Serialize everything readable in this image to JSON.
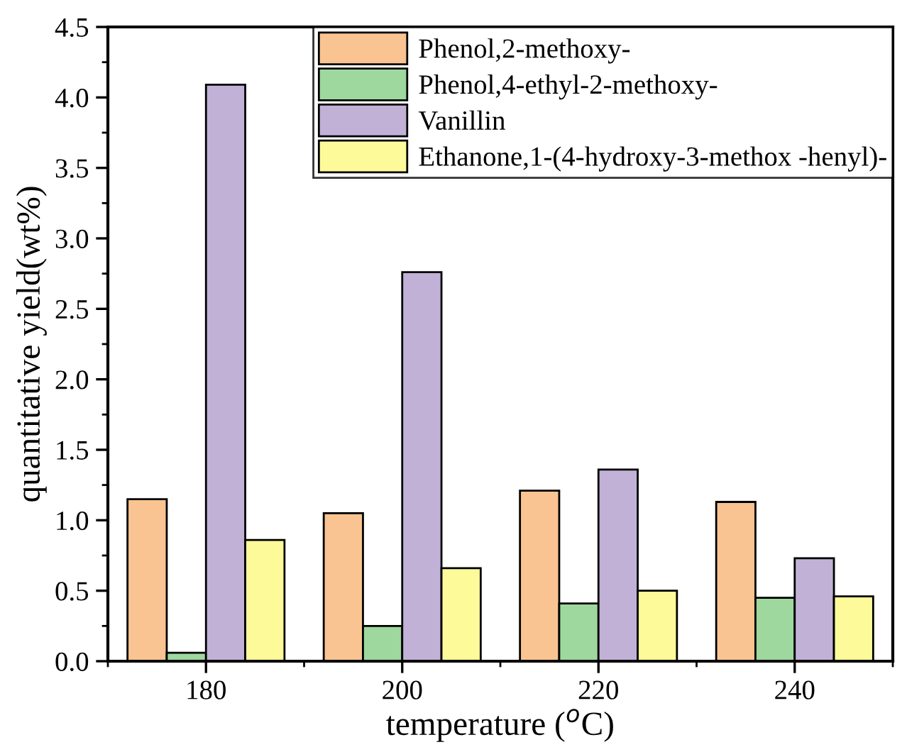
{
  "chart_data": {
    "type": "bar",
    "xlabel": "temperature ($^{o}$C)",
    "ylabel": "quantitative yield(wt%)",
    "categories": [
      "180",
      "200",
      "220",
      "240"
    ],
    "series": [
      {
        "name": "Phenol,2-methoxy-",
        "color": "#f9c491",
        "values": [
          1.15,
          1.05,
          1.21,
          1.13
        ]
      },
      {
        "name": "Phenol,4-ethyl-2-methoxy-",
        "color": "#9ed89e",
        "values": [
          0.06,
          0.25,
          0.41,
          0.45
        ]
      },
      {
        "name": "Vanillin",
        "color": "#c1b1d6",
        "values": [
          4.09,
          2.76,
          1.36,
          0.73
        ]
      },
      {
        "name": "Ethanone,1-(4-hydroxy-3-methox -henyl)-",
        "color": "#fdfa9a",
        "values": [
          0.86,
          0.66,
          0.5,
          0.46
        ]
      }
    ],
    "ylim": [
      0,
      4.5
    ],
    "yticks": [
      {
        "value": 0,
        "label": "0.0"
      },
      0.5,
      {
        "value": 1,
        "label": "1.0"
      },
      1.5,
      {
        "value": 2,
        "label": "2.0"
      },
      2.5,
      {
        "value": 3,
        "label": "3.0"
      },
      3.5,
      {
        "value": 4,
        "label": "4.0"
      },
      4.5
    ],
    "grid": false,
    "legend": "top right"
  }
}
